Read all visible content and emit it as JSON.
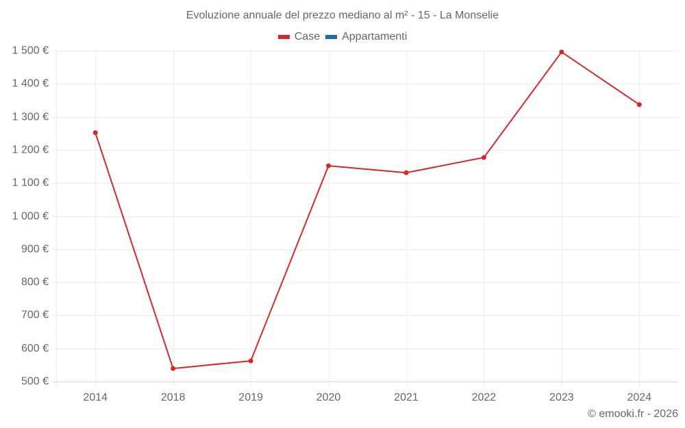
{
  "chart_data": {
    "type": "line",
    "title": "Evoluzione annuale del prezzo mediano al m² - 15 - La Monselie",
    "categories": [
      "2014",
      "2018",
      "2019",
      "2020",
      "2021",
      "2022",
      "2023",
      "2024"
    ],
    "series": [
      {
        "name": "Case",
        "color": "#d62728",
        "values": [
          1252,
          539,
          562,
          1152,
          1131,
          1177,
          1496,
          1337
        ]
      },
      {
        "name": "Appartamenti",
        "color": "#1f6aa5",
        "values": []
      }
    ],
    "xlabel": "",
    "ylabel": "",
    "ylim": [
      500,
      1500
    ],
    "yticks": [
      500,
      600,
      700,
      800,
      900,
      1000,
      1100,
      1200,
      1300,
      1400,
      1500
    ],
    "ytick_labels": [
      "500 €",
      "600 €",
      "700 €",
      "800 €",
      "900 €",
      "1 000 €",
      "1 100 €",
      "1 200 €",
      "1 300 €",
      "1 400 €",
      "1 500 €"
    ],
    "grid": true,
    "legend_position": "top"
  },
  "header": {
    "title": "Evoluzione annuale del prezzo mediano al m² - 15 - La Monselie"
  },
  "legend": {
    "items": [
      {
        "label": "Case",
        "color": "#d62728"
      },
      {
        "label": "Appartamenti",
        "color": "#1f6aa5"
      }
    ]
  },
  "footer": {
    "credit": "© emooki.fr - 2026"
  }
}
